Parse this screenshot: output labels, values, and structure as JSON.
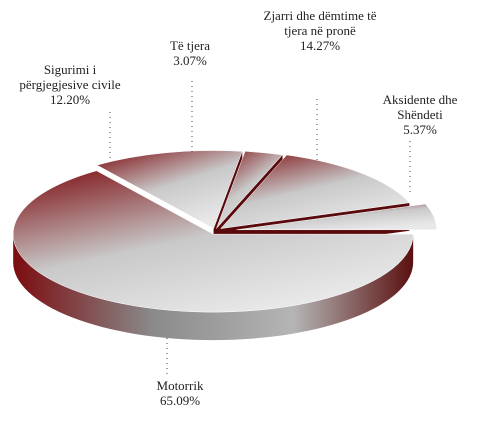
{
  "chart_data": {
    "type": "pie",
    "categories": [
      "Motorrik",
      "Sigurimi i përgjegjesive civile",
      "Të tjera",
      "Zjarri dhe dëmtime të tjera në pronë",
      "Aksidente dhe Shëndeti"
    ],
    "values": [
      65.09,
      12.2,
      3.07,
      14.27,
      5.37
    ],
    "value_labels": [
      "65.09%",
      "12.20%",
      "3.07%",
      "14.27%",
      "5.37%"
    ],
    "color": "#7b0c10"
  }
}
